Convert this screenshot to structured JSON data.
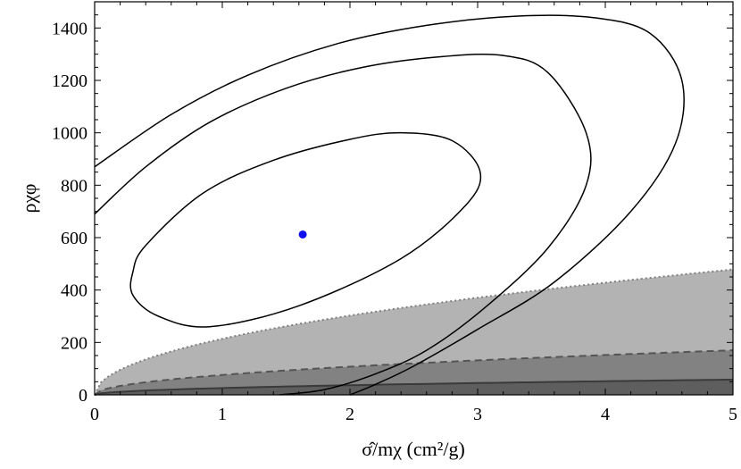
{
  "chart_data": {
    "type": "contour",
    "xlabel": "σ̂/mχ (cm²/g)",
    "ylabel": "ρχφ",
    "xlim": [
      0,
      5
    ],
    "ylim": [
      0,
      1500
    ],
    "x_ticks": [
      "0",
      "1",
      "2",
      "3",
      "4",
      "5"
    ],
    "y_ticks": [
      "0",
      "200",
      "400",
      "600",
      "800",
      "1000",
      "1200",
      "1400"
    ],
    "grid": false,
    "best_fit_point": {
      "x": 1.63,
      "y": 612,
      "color": "#1010ee"
    },
    "contours": [
      {
        "level": "inner",
        "color": "#000000",
        "points": [
          [
            0.3,
            380
          ],
          [
            0.5,
            300
          ],
          [
            0.9,
            260
          ],
          [
            1.6,
            340
          ],
          [
            2.4,
            520
          ],
          [
            2.9,
            720
          ],
          [
            3.02,
            850
          ],
          [
            2.8,
            970
          ],
          [
            2.4,
            1000
          ],
          [
            2.0,
            975
          ],
          [
            1.4,
            895
          ],
          [
            0.85,
            770
          ],
          [
            0.4,
            570
          ],
          [
            0.3,
            470
          ]
        ]
      },
      {
        "level": "middle",
        "color": "#000000",
        "points": [
          [
            0,
            690
          ],
          [
            0.4,
            870
          ],
          [
            0.9,
            1040
          ],
          [
            1.5,
            1170
          ],
          [
            2.1,
            1250
          ],
          [
            2.7,
            1290
          ],
          [
            3.2,
            1295
          ],
          [
            3.55,
            1230
          ],
          [
            3.85,
            1000
          ],
          [
            3.85,
            800
          ],
          [
            3.55,
            560
          ],
          [
            3.05,
            330
          ],
          [
            2.6,
            170
          ],
          [
            2.2,
            80
          ],
          [
            1.8,
            20
          ],
          [
            1.45,
            0
          ]
        ]
      },
      {
        "level": "outer",
        "color": "#000000",
        "points": [
          [
            0,
            870
          ],
          [
            0.6,
            1070
          ],
          [
            1.2,
            1220
          ],
          [
            1.9,
            1340
          ],
          [
            2.6,
            1410
          ],
          [
            3.3,
            1445
          ],
          [
            3.9,
            1440
          ],
          [
            4.35,
            1380
          ],
          [
            4.6,
            1200
          ],
          [
            4.55,
            960
          ],
          [
            4.2,
            700
          ],
          [
            3.6,
            430
          ],
          [
            3.0,
            250
          ],
          [
            2.5,
            110
          ],
          [
            2.2,
            40
          ],
          [
            2.0,
            0
          ]
        ]
      }
    ],
    "bands": [
      {
        "style": "dotted",
        "fill": "#b3b3b3",
        "stroke": "#808080",
        "coef": 214
      },
      {
        "style": "dashed",
        "fill": "#828282",
        "stroke": "#555555",
        "coef": 76
      },
      {
        "style": "solid",
        "fill": "#5e5e5e",
        "stroke": "#3a3a3a",
        "coef": 26
      }
    ]
  }
}
